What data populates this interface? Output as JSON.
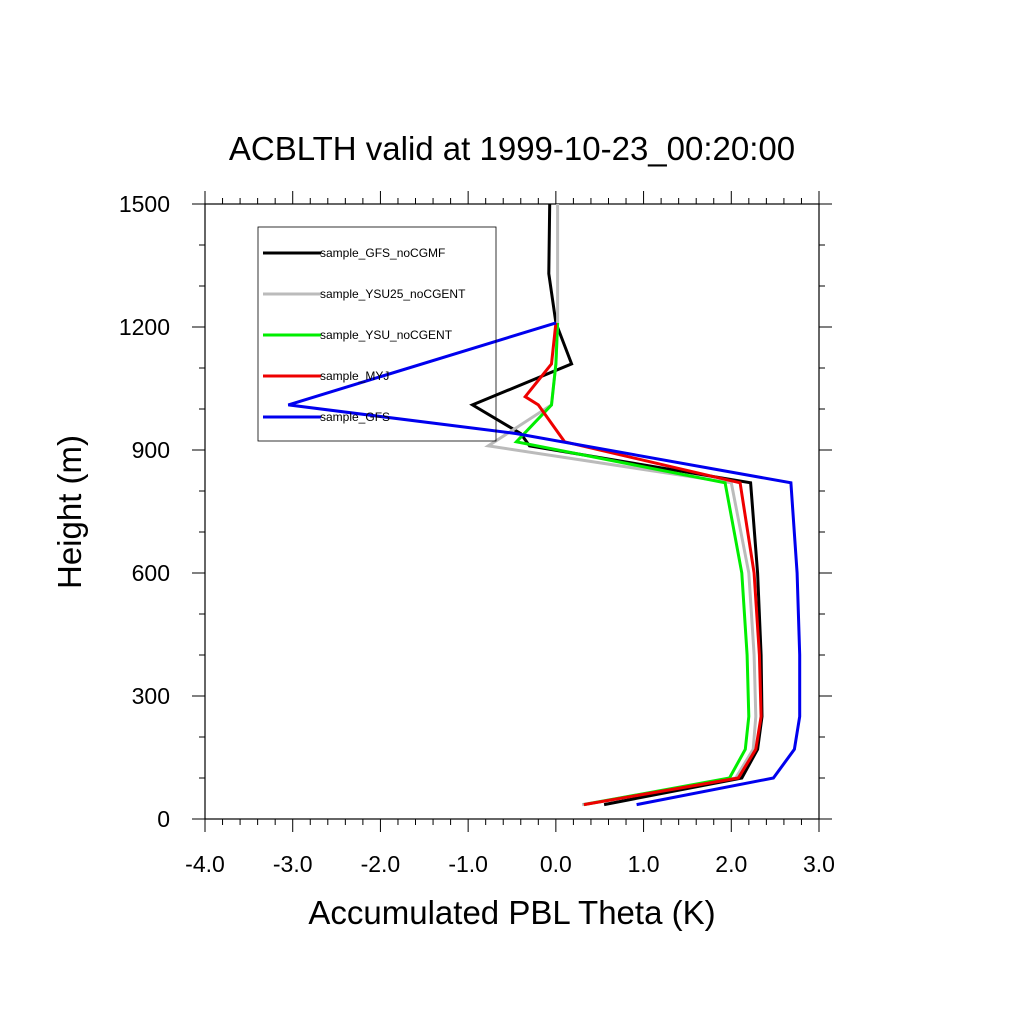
{
  "chart_data": {
    "type": "line",
    "title": "ACBLTH valid at 1999-10-23_00:20:00",
    "xlabel": "Accumulated PBL Theta (K)",
    "ylabel": "Height (m)",
    "xlim": [
      -4.0,
      3.0
    ],
    "ylim": [
      0,
      1500
    ],
    "x_ticks": [
      -4.0,
      -3.0,
      -2.0,
      -1.0,
      0.0,
      1.0,
      2.0,
      3.0
    ],
    "x_tick_labels": [
      "-4.0",
      "-3.0",
      "-2.0",
      "-1.0",
      "0.0",
      "1.0",
      "2.0",
      "3.0"
    ],
    "y_ticks": [
      0,
      300,
      600,
      900,
      1200,
      1500
    ],
    "y_tick_labels": [
      "0",
      "300",
      "600",
      "900",
      "1200",
      "1500"
    ],
    "grid": false,
    "legend_position": "top-left",
    "series": [
      {
        "name": "sample_GFS_noCGMF",
        "color": "#000000",
        "points": [
          [
            0.55,
            35
          ],
          [
            2.12,
            100
          ],
          [
            2.3,
            170
          ],
          [
            2.35,
            250
          ],
          [
            2.34,
            400
          ],
          [
            2.3,
            600
          ],
          [
            2.22,
            820
          ],
          [
            -0.3,
            910
          ],
          [
            -0.4,
            940
          ],
          [
            -0.95,
            1010
          ],
          [
            0.18,
            1110
          ],
          [
            0.0,
            1210
          ],
          [
            -0.08,
            1330
          ],
          [
            -0.07,
            1500
          ]
        ]
      },
      {
        "name": "sample_YSU25_noCGENT",
        "color": "#bbbbbb",
        "points": [
          [
            0.3,
            35
          ],
          [
            2.05,
            100
          ],
          [
            2.25,
            170
          ],
          [
            2.28,
            250
          ],
          [
            2.26,
            400
          ],
          [
            2.2,
            600
          ],
          [
            2.0,
            820
          ],
          [
            -0.77,
            910
          ],
          [
            -0.05,
            1010
          ],
          [
            0.0,
            1110
          ],
          [
            0.02,
            1210
          ],
          [
            0.02,
            1330
          ],
          [
            0.02,
            1500
          ]
        ]
      },
      {
        "name": "sample_YSU_noCGENT",
        "color": "#00ee00",
        "points": [
          [
            0.32,
            35
          ],
          [
            1.98,
            100
          ],
          [
            2.16,
            170
          ],
          [
            2.2,
            250
          ],
          [
            2.18,
            400
          ],
          [
            2.12,
            600
          ],
          [
            1.93,
            820
          ],
          [
            -0.45,
            920
          ],
          [
            -0.05,
            1010
          ],
          [
            0.0,
            1110
          ],
          [
            0.02,
            1210
          ]
        ]
      },
      {
        "name": "sample_MYJ",
        "color": "#ee0000",
        "points": [
          [
            0.32,
            35
          ],
          [
            2.08,
            100
          ],
          [
            2.28,
            170
          ],
          [
            2.34,
            250
          ],
          [
            2.32,
            400
          ],
          [
            2.26,
            600
          ],
          [
            2.1,
            820
          ],
          [
            0.1,
            920
          ],
          [
            -0.2,
            1010
          ],
          [
            -0.35,
            1030
          ],
          [
            -0.05,
            1110
          ],
          [
            0.0,
            1210
          ]
        ]
      },
      {
        "name": "sample_GFS",
        "color": "#0000ee",
        "points": [
          [
            0.92,
            35
          ],
          [
            2.48,
            100
          ],
          [
            2.72,
            170
          ],
          [
            2.78,
            250
          ],
          [
            2.78,
            400
          ],
          [
            2.75,
            600
          ],
          [
            2.68,
            820
          ],
          [
            -0.45,
            940
          ],
          [
            -3.05,
            1010
          ],
          [
            0.0,
            1210
          ]
        ]
      }
    ]
  }
}
